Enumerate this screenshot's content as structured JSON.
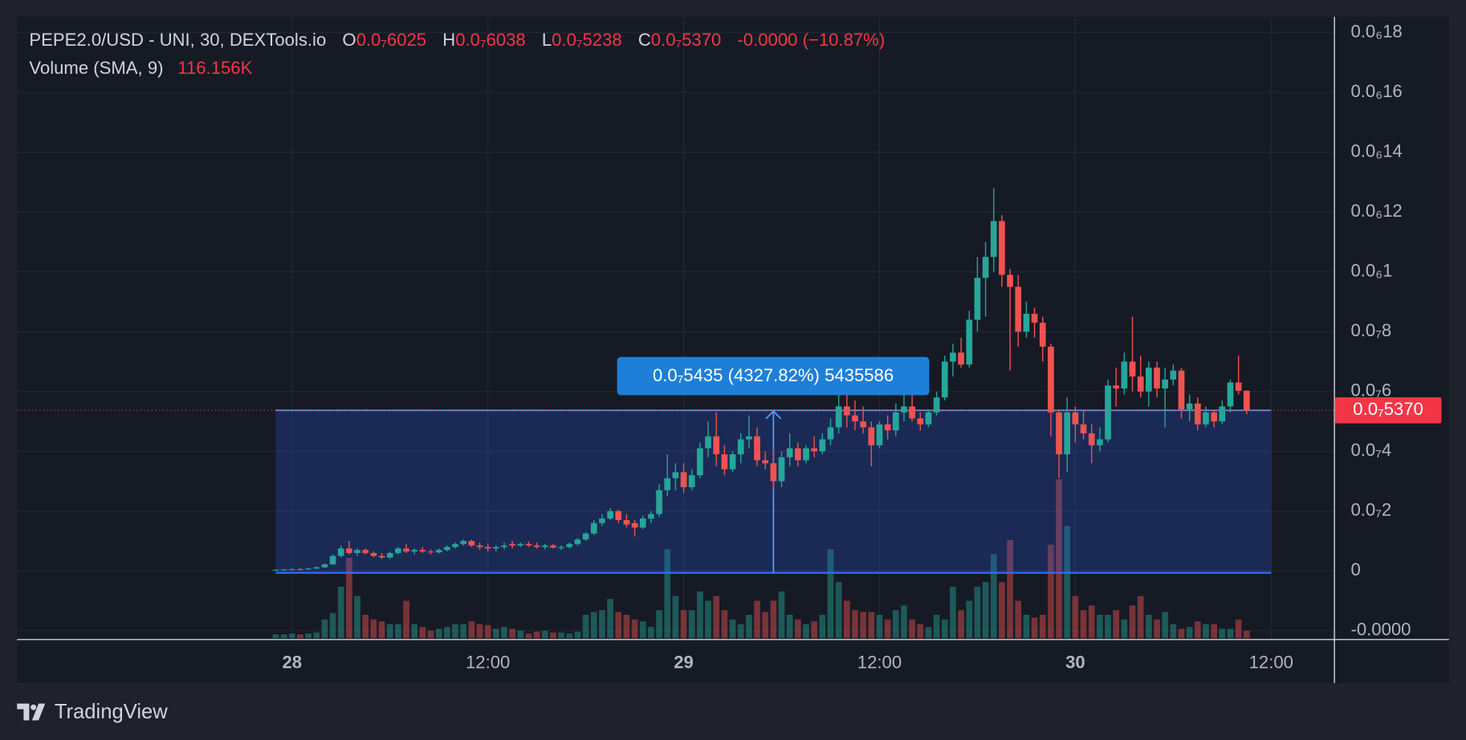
{
  "chart_data": {
    "type": "candlestick",
    "title": "PEPE2.0/USD - UNI, 30, DEXTools.io",
    "ohlc_legend": [
      {
        "key": "O",
        "value": "0.0₇6025"
      },
      {
        "key": "H",
        "value": "0.0₇6038"
      },
      {
        "key": "L",
        "value": "0.0₇5238"
      },
      {
        "key": "C",
        "value": "0.0₇5370"
      }
    ],
    "change_label": "-0.0000 (−10.87%)",
    "volume_legend": {
      "name": "Volume (SMA, 9)",
      "value": "116.156K"
    },
    "brand": "TradingView",
    "up_color": "#26a69a",
    "down_color": "#ef5350",
    "grid": true,
    "xlim": [
      -31.7,
      129.7
    ],
    "ylim": [
      -2.28e-08,
      1.853e-07
    ],
    "xticks": [
      {
        "value": 2,
        "label": "28"
      },
      {
        "value": 26,
        "label": "12:00"
      },
      {
        "value": 50,
        "label": "29"
      },
      {
        "value": 74,
        "label": "12:00"
      },
      {
        "value": 98,
        "label": "30"
      },
      {
        "value": 122,
        "label": "12:00"
      }
    ],
    "yticks": [
      {
        "value": 1.8e-07,
        "label": "0.0₆18"
      },
      {
        "value": 1.6e-07,
        "label": "0.0₆16"
      },
      {
        "value": 1.4e-07,
        "label": "0.0₆14"
      },
      {
        "value": 1.2e-07,
        "label": "0.0₆12"
      },
      {
        "value": 1e-07,
        "label": "0.0₆1"
      },
      {
        "value": 8e-08,
        "label": "0.0₇8"
      },
      {
        "value": 6e-08,
        "label": "0.0₇6"
      },
      {
        "value": 4e-08,
        "label": "0.0₇4"
      },
      {
        "value": 2e-08,
        "label": "0.0₇2"
      },
      0,
      {
        "value": -2e-08,
        "label": "-0.0000"
      }
    ],
    "last_price": {
      "value": 5.37e-08,
      "label": "0.0₇5370"
    },
    "measure": {
      "label": "0.0₇5435 (4327.82%) 5435586",
      "change": 5.435e-08,
      "x_from": 0,
      "x_to": 122
    },
    "candles": [
      [
        2e-10,
        5e-10,
        0.0,
        4e-10
      ],
      [
        4e-10,
        6e-10,
        2e-10,
        5e-10
      ],
      [
        5e-10,
        8e-10,
        3e-10,
        6e-10
      ],
      [
        6e-10,
        9e-10,
        4e-10,
        5e-10
      ],
      [
        5e-10,
        1e-09,
        4e-10,
        8e-10
      ],
      [
        8e-10,
        1.5e-09,
        7e-10,
        1.2e-09
      ],
      [
        1.2e-09,
        2.5e-09,
        1e-09,
        2.2e-09
      ],
      [
        2.2e-09,
        5.5e-09,
        2e-09,
        5e-09
      ],
      [
        5e-09,
        8.5e-09,
        4.5e-09,
        7.5e-09
      ],
      [
        7.5e-09,
        1e-08,
        5.5e-09,
        6e-09
      ],
      [
        6e-09,
        7.5e-09,
        5e-09,
        7e-09
      ],
      [
        7e-09,
        7.5e-09,
        5.5e-09,
        6e-09
      ],
      [
        6e-09,
        6.5e-09,
        4.5e-09,
        5e-09
      ],
      [
        5e-09,
        6e-09,
        4e-09,
        4.5e-09
      ],
      [
        4.5e-09,
        6.5e-09,
        4e-09,
        6e-09
      ],
      [
        6e-09,
        8e-09,
        5.5e-09,
        7.5e-09
      ],
      [
        7.5e-09,
        9e-09,
        6e-09,
        6.5e-09
      ],
      [
        6.5e-09,
        7.5e-09,
        5.5e-09,
        7e-09
      ],
      [
        7e-09,
        8e-09,
        6e-09,
        6.5e-09
      ],
      [
        6.5e-09,
        7.2e-09,
        5.5e-09,
        6.2e-09
      ],
      [
        6.2e-09,
        7.5e-09,
        5.8e-09,
        7e-09
      ],
      [
        7e-09,
        8.5e-09,
        6.5e-09,
        8e-09
      ],
      [
        8e-09,
        9.5e-09,
        7.5e-09,
        9e-09
      ],
      [
        9e-09,
        1.05e-08,
        8.5e-09,
        1e-08
      ],
      [
        1e-08,
        1.05e-08,
        8e-09,
        8.5e-09
      ],
      [
        8.5e-09,
        9.5e-09,
        7e-09,
        8e-09
      ],
      [
        8e-09,
        9e-09,
        6.5e-09,
        7.5e-09
      ],
      [
        7.5e-09,
        8.5e-09,
        6.5e-09,
        8e-09
      ],
      [
        8e-09,
        9.5e-09,
        7.2e-09,
        8.5e-09
      ],
      [
        9e-09,
        1e-08,
        7.5e-09,
        8.5e-09
      ],
      [
        8.5e-09,
        9.5e-09,
        8e-09,
        9e-09
      ],
      [
        9e-09,
        9.8e-09,
        8e-09,
        8.5e-09
      ],
      [
        8.5e-09,
        9.5e-09,
        7.5e-09,
        8e-09
      ],
      [
        8e-09,
        9e-09,
        7.2e-09,
        8.5e-09
      ],
      [
        8.5e-09,
        9e-09,
        7.5e-09,
        7.8e-09
      ],
      [
        7.8e-09,
        8.5e-09,
        7e-09,
        8e-09
      ],
      [
        8e-09,
        9.5e-09,
        7.5e-09,
        9e-09
      ],
      [
        9e-09,
        1.1e-08,
        8.5e-09,
        1.05e-08
      ],
      [
        1.05e-08,
        1.3e-08,
        1e-08,
        1.25e-08
      ],
      [
        1.25e-08,
        1.7e-08,
        1.2e-08,
        1.6e-08
      ],
      [
        1.6e-08,
        1.9e-08,
        1.5e-08,
        1.75e-08
      ],
      [
        1.75e-08,
        2.1e-08,
        1.7e-08,
        2e-08
      ],
      [
        2e-08,
        2.05e-08,
        1.6e-08,
        1.7e-08
      ],
      [
        1.7e-08,
        1.9e-08,
        1.45e-08,
        1.55e-08
      ],
      [
        1.6e-08,
        1.7e-08,
        1.15e-08,
        1.45e-08
      ],
      [
        1.45e-08,
        1.85e-08,
        1.4e-08,
        1.75e-08
      ],
      [
        1.75e-08,
        2e-08,
        1.6e-08,
        1.9e-08
      ],
      [
        1.9e-08,
        2.9e-08,
        1.8e-08,
        2.7e-08
      ],
      [
        2.7e-08,
        3.9e-08,
        2.5e-08,
        3.1e-08
      ],
      [
        3.1e-08,
        3.6e-08,
        2.7e-08,
        3.3e-08
      ],
      [
        3.3e-08,
        3.6e-08,
        2.6e-08,
        2.8e-08
      ],
      [
        2.8e-08,
        3.4e-08,
        2.7e-08,
        3.2e-08
      ],
      [
        3.2e-08,
        4.3e-08,
        3.1e-08,
        4.1e-08
      ],
      [
        4.1e-08,
        5e-08,
        3.8e-08,
        4.5e-08
      ],
      [
        4.5e-08,
        5.3e-08,
        3.5e-08,
        3.9e-08
      ],
      [
        3.9e-08,
        4.2e-08,
        3.2e-08,
        3.4e-08
      ],
      [
        3.4e-08,
        4e-08,
        3.3e-08,
        3.9e-08
      ],
      [
        3.9e-08,
        4.6e-08,
        3.6e-08,
        4.4e-08
      ],
      [
        4.4e-08,
        5.2e-08,
        4.1e-08,
        4.5e-08
      ],
      [
        4.5e-08,
        4.8e-08,
        3.5e-08,
        3.7e-08
      ],
      [
        3.7e-08,
        4e-08,
        3.4e-08,
        3.6e-08
      ],
      [
        3.6e-08,
        4.1e-08,
        2.7e-08,
        3e-08
      ],
      [
        3e-08,
        4e-08,
        2.8e-08,
        3.8e-08
      ],
      [
        3.8e-08,
        4.6e-08,
        3.5e-08,
        4.1e-08
      ],
      [
        4.1e-08,
        4.3e-08,
        3.5e-08,
        3.7e-08
      ],
      [
        3.7e-08,
        4.2e-08,
        3.6e-08,
        4.1e-08
      ],
      [
        4.1e-08,
        4.5e-08,
        3.8e-08,
        4e-08
      ],
      [
        4e-08,
        4.6e-08,
        3.9e-08,
        4.4e-08
      ],
      [
        4.4e-08,
        5.1e-08,
        4.2e-08,
        4.8e-08
      ],
      [
        4.8e-08,
        5.9e-08,
        4.6e-08,
        5.5e-08
      ],
      [
        5.5e-08,
        6e-08,
        4.8e-08,
        5.2e-08
      ],
      [
        5.2e-08,
        5.7e-08,
        4.7e-08,
        5e-08
      ],
      [
        5e-08,
        5.5e-08,
        4.6e-08,
        4.8e-08
      ],
      [
        4.8e-08,
        5e-08,
        3.5e-08,
        4.2e-08
      ],
      [
        4.2e-08,
        5e-08,
        4.1e-08,
        4.9e-08
      ],
      [
        4.9e-08,
        5.2e-08,
        4.4e-08,
        4.7e-08
      ],
      [
        4.7e-08,
        5.6e-08,
        4.5e-08,
        5.3e-08
      ],
      [
        5.3e-08,
        6.2e-08,
        5e-08,
        5.5e-08
      ],
      [
        5.5e-08,
        6e-08,
        5e-08,
        5.1e-08
      ],
      [
        5.1e-08,
        5.3e-08,
        4.7e-08,
        4.9e-08
      ],
      [
        4.9e-08,
        5.4e-08,
        4.8e-08,
        5.3e-08
      ],
      [
        5.3e-08,
        6e-08,
        5.2e-08,
        5.8e-08
      ],
      [
        5.8e-08,
        7.2e-08,
        5.7e-08,
        7e-08
      ],
      [
        7e-08,
        7.6e-08,
        6.5e-08,
        7.3e-08
      ],
      [
        7.3e-08,
        7.8e-08,
        6.8e-08,
        6.9e-08
      ],
      [
        6.9e-08,
        8.7e-08,
        6.8e-08,
        8.4e-08
      ],
      [
        8.4e-08,
        1.05e-07,
        8e-08,
        9.8e-08
      ],
      [
        9.8e-08,
        1.1e-07,
        8.5e-08,
        1.05e-07
      ],
      [
        1.05e-07,
        1.28e-07,
        1e-07,
        1.17e-07
      ],
      [
        1.17e-07,
        1.19e-07,
        9.5e-08,
        9.9e-08
      ],
      [
        9.9e-08,
        1.01e-07,
        6.7e-08,
        9.5e-08
      ],
      [
        9.5e-08,
        9.9e-08,
        7.5e-08,
        8e-08
      ],
      [
        8e-08,
        9e-08,
        7.8e-08,
        8.6e-08
      ],
      [
        8.6e-08,
        8.8e-08,
        7.8e-08,
        8.3e-08
      ],
      [
        8.3e-08,
        8.5e-08,
        7e-08,
        7.5e-08
      ],
      [
        7.5e-08,
        7.6e-08,
        4.5e-08,
        5.3e-08
      ],
      [
        5.3e-08,
        5.4e-08,
        3.1e-08,
        3.9e-08
      ],
      [
        3.9e-08,
        5.8e-08,
        3.3e-08,
        5.3e-08
      ],
      [
        5.3e-08,
        5.5e-08,
        4.3e-08,
        4.9e-08
      ],
      [
        4.9e-08,
        5.4e-08,
        4.4e-08,
        4.6e-08
      ],
      [
        4.6e-08,
        4.9e-08,
        3.6e-08,
        4.2e-08
      ],
      [
        4.2e-08,
        4.8e-08,
        4e-08,
        4.4e-08
      ],
      [
        4.4e-08,
        6.4e-08,
        4.3e-08,
        6.2e-08
      ],
      [
        6.2e-08,
        6.8e-08,
        5.5e-08,
        6.1e-08
      ],
      [
        6.1e-08,
        7.3e-08,
        5.9e-08,
        7e-08
      ],
      [
        7e-08,
        8.5e-08,
        6e-08,
        6.5e-08
      ],
      [
        6.5e-08,
        7.2e-08,
        5.8e-08,
        6e-08
      ],
      [
        6e-08,
        7e-08,
        5.5e-08,
        6.8e-08
      ],
      [
        6.8e-08,
        7e-08,
        5.8e-08,
        6.1e-08
      ],
      [
        6.1e-08,
        6.8e-08,
        4.8e-08,
        6.4e-08
      ],
      [
        6.4e-08,
        6.9e-08,
        6.2e-08,
        6.7e-08
      ],
      [
        6.7e-08,
        6.8e-08,
        5.1e-08,
        5.4e-08
      ],
      [
        5.4e-08,
        5.9e-08,
        5e-08,
        5.6e-08
      ],
      [
        5.6e-08,
        5.8e-08,
        4.7e-08,
        4.9e-08
      ],
      [
        4.9e-08,
        5.5e-08,
        4.8e-08,
        5.3e-08
      ],
      [
        5.3e-08,
        5.4e-08,
        4.8e-08,
        5e-08
      ],
      [
        5e-08,
        5.7e-08,
        4.9e-08,
        5.5e-08
      ],
      [
        5.5e-08,
        6.4e-08,
        5.3e-08,
        6.3e-08
      ],
      [
        6.3e-08,
        7.2e-08,
        5.9e-08,
        6.025e-08
      ],
      [
        6.025e-08,
        6.038e-08,
        5.238e-08,
        5.37e-08
      ]
    ],
    "volume": [
      13200,
      13200,
      16500,
      13200,
      16500,
      19800,
      66000,
      89100,
      181500,
      283800,
      148500,
      82500,
      66000,
      59400,
      49500,
      49500,
      132000,
      49500,
      39600,
      26400,
      33000,
      39600,
      49500,
      49500,
      59400,
      49500,
      46200,
      33000,
      39600,
      33000,
      26400,
      16500,
      23100,
      26400,
      19800,
      19800,
      16500,
      23100,
      82500,
      92400,
      99000,
      138600,
      92400,
      82500,
      66000,
      59400,
      39600,
      99000,
      313500,
      148500,
      99000,
      99000,
      165000,
      132000,
      148500,
      99000,
      66000,
      49500,
      82500,
      132000,
      92400,
      132000,
      165000,
      82500,
      66000,
      49500,
      59400,
      82500,
      313500,
      198000,
      132000,
      99000,
      92400,
      92400,
      82500,
      66000,
      99000,
      115500,
      66000,
      49500,
      39600,
      82500,
      66000,
      181500,
      99000,
      132000,
      181500,
      198000,
      297000,
      198000,
      346500,
      132000,
      82500,
      72600,
      82500,
      330000,
      561000,
      396000,
      148500,
      99000,
      115500,
      82500,
      82500,
      99000,
      66000,
      115500,
      148500,
      82500,
      66000,
      92400,
      49500,
      33000,
      39600,
      59400,
      49500,
      49500,
      33000,
      33000,
      66000,
      26400
    ]
  }
}
